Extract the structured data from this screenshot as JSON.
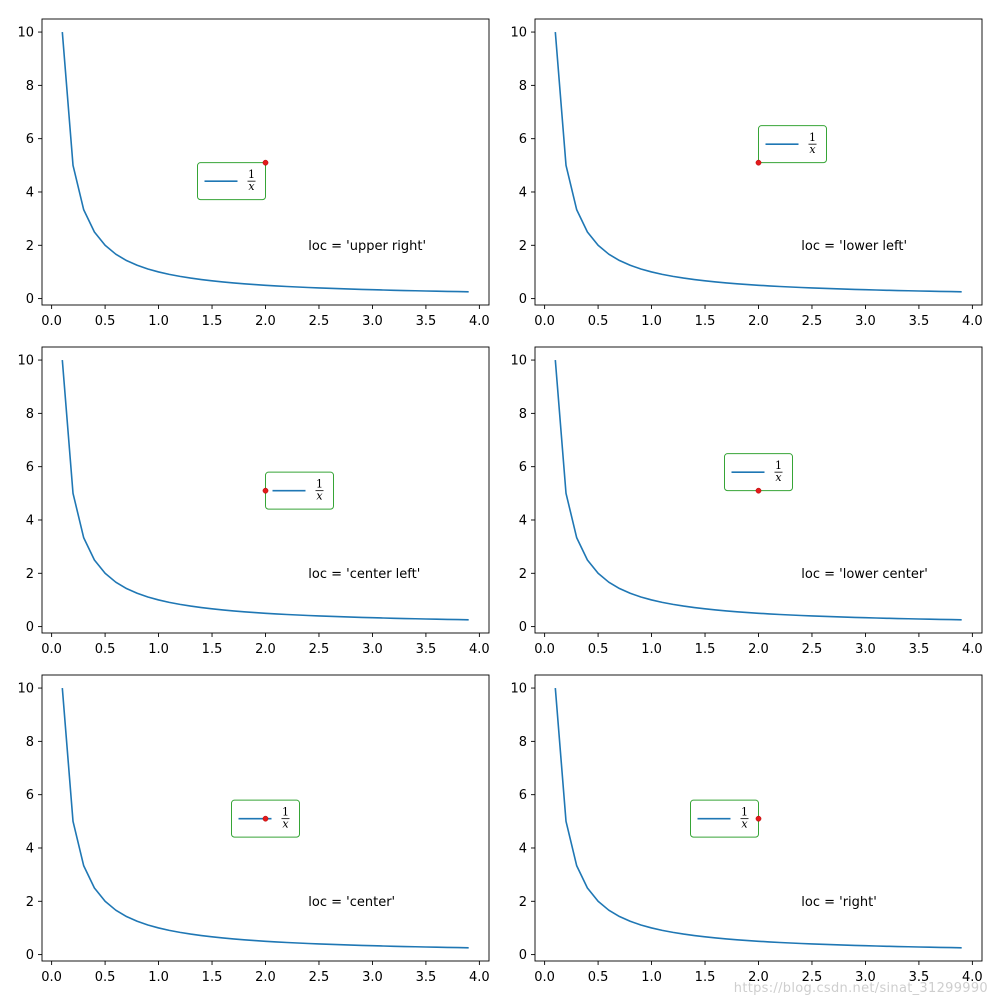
{
  "chart_data": [
    {
      "type": "line",
      "annotation": "loc = 'upper right'",
      "legend_label": "1/x",
      "legend_anchor": "upper right",
      "anchor_point": [
        2.0,
        5.1
      ],
      "x": [
        0.1,
        0.2,
        0.3,
        0.4,
        0.5,
        0.6,
        0.7,
        0.8,
        0.9,
        1.0,
        1.1,
        1.2,
        1.3,
        1.4,
        1.5,
        1.6,
        1.7,
        1.8,
        1.9,
        2.0,
        2.1,
        2.2,
        2.3,
        2.4,
        2.5,
        2.6,
        2.7,
        2.8,
        2.9,
        3.0,
        3.1,
        3.2,
        3.3,
        3.4,
        3.5,
        3.6,
        3.7,
        3.8,
        3.9
      ],
      "xlim": [
        -0.09,
        4.09
      ],
      "ylim": [
        -0.24,
        10.49
      ],
      "xticks": [
        "0.0",
        "0.5",
        "1.0",
        "1.5",
        "2.0",
        "2.5",
        "3.0",
        "3.5",
        "4.0"
      ],
      "yticks": [
        "0",
        "2",
        "4",
        "6",
        "8",
        "10"
      ]
    },
    {
      "type": "line",
      "annotation": "loc = 'lower left'",
      "legend_label": "1/x",
      "legend_anchor": "lower left",
      "anchor_point": [
        2.0,
        5.1
      ],
      "x": [
        0.1,
        0.2,
        0.3,
        0.4,
        0.5,
        0.6,
        0.7,
        0.8,
        0.9,
        1.0,
        1.1,
        1.2,
        1.3,
        1.4,
        1.5,
        1.6,
        1.7,
        1.8,
        1.9,
        2.0,
        2.1,
        2.2,
        2.3,
        2.4,
        2.5,
        2.6,
        2.7,
        2.8,
        2.9,
        3.0,
        3.1,
        3.2,
        3.3,
        3.4,
        3.5,
        3.6,
        3.7,
        3.8,
        3.9
      ],
      "xlim": [
        -0.09,
        4.09
      ],
      "ylim": [
        -0.24,
        10.49
      ],
      "xticks": [
        "0.0",
        "0.5",
        "1.0",
        "1.5",
        "2.0",
        "2.5",
        "3.0",
        "3.5",
        "4.0"
      ],
      "yticks": [
        "0",
        "2",
        "4",
        "6",
        "8",
        "10"
      ]
    },
    {
      "type": "line",
      "annotation": "loc = 'center left'",
      "legend_label": "1/x",
      "legend_anchor": "center left",
      "anchor_point": [
        2.0,
        5.1
      ],
      "x": [
        0.1,
        0.2,
        0.3,
        0.4,
        0.5,
        0.6,
        0.7,
        0.8,
        0.9,
        1.0,
        1.1,
        1.2,
        1.3,
        1.4,
        1.5,
        1.6,
        1.7,
        1.8,
        1.9,
        2.0,
        2.1,
        2.2,
        2.3,
        2.4,
        2.5,
        2.6,
        2.7,
        2.8,
        2.9,
        3.0,
        3.1,
        3.2,
        3.3,
        3.4,
        3.5,
        3.6,
        3.7,
        3.8,
        3.9
      ],
      "xlim": [
        -0.09,
        4.09
      ],
      "ylim": [
        -0.24,
        10.49
      ],
      "xticks": [
        "0.0",
        "0.5",
        "1.0",
        "1.5",
        "2.0",
        "2.5",
        "3.0",
        "3.5",
        "4.0"
      ],
      "yticks": [
        "0",
        "2",
        "4",
        "6",
        "8",
        "10"
      ]
    },
    {
      "type": "line",
      "annotation": "loc = 'lower center'",
      "legend_label": "1/x",
      "legend_anchor": "lower center",
      "anchor_point": [
        2.0,
        5.1
      ],
      "x": [
        0.1,
        0.2,
        0.3,
        0.4,
        0.5,
        0.6,
        0.7,
        0.8,
        0.9,
        1.0,
        1.1,
        1.2,
        1.3,
        1.4,
        1.5,
        1.6,
        1.7,
        1.8,
        1.9,
        2.0,
        2.1,
        2.2,
        2.3,
        2.4,
        2.5,
        2.6,
        2.7,
        2.8,
        2.9,
        3.0,
        3.1,
        3.2,
        3.3,
        3.4,
        3.5,
        3.6,
        3.7,
        3.8,
        3.9
      ],
      "xlim": [
        -0.09,
        4.09
      ],
      "ylim": [
        -0.24,
        10.49
      ],
      "xticks": [
        "0.0",
        "0.5",
        "1.0",
        "1.5",
        "2.0",
        "2.5",
        "3.0",
        "3.5",
        "4.0"
      ],
      "yticks": [
        "0",
        "2",
        "4",
        "6",
        "8",
        "10"
      ]
    },
    {
      "type": "line",
      "annotation": "loc = 'center'",
      "legend_label": "1/x",
      "legend_anchor": "center",
      "anchor_point": [
        2.0,
        5.1
      ],
      "x": [
        0.1,
        0.2,
        0.3,
        0.4,
        0.5,
        0.6,
        0.7,
        0.8,
        0.9,
        1.0,
        1.1,
        1.2,
        1.3,
        1.4,
        1.5,
        1.6,
        1.7,
        1.8,
        1.9,
        2.0,
        2.1,
        2.2,
        2.3,
        2.4,
        2.5,
        2.6,
        2.7,
        2.8,
        2.9,
        3.0,
        3.1,
        3.2,
        3.3,
        3.4,
        3.5,
        3.6,
        3.7,
        3.8,
        3.9
      ],
      "xlim": [
        -0.09,
        4.09
      ],
      "ylim": [
        -0.24,
        10.49
      ],
      "xticks": [
        "0.0",
        "0.5",
        "1.0",
        "1.5",
        "2.0",
        "2.5",
        "3.0",
        "3.5",
        "4.0"
      ],
      "yticks": [
        "0",
        "2",
        "4",
        "6",
        "8",
        "10"
      ]
    },
    {
      "type": "line",
      "annotation": "loc = 'right'",
      "legend_label": "1/x",
      "legend_anchor": "right",
      "anchor_point": [
        2.0,
        5.1
      ],
      "x": [
        0.1,
        0.2,
        0.3,
        0.4,
        0.5,
        0.6,
        0.7,
        0.8,
        0.9,
        1.0,
        1.1,
        1.2,
        1.3,
        1.4,
        1.5,
        1.6,
        1.7,
        1.8,
        1.9,
        2.0,
        2.1,
        2.2,
        2.3,
        2.4,
        2.5,
        2.6,
        2.7,
        2.8,
        2.9,
        3.0,
        3.1,
        3.2,
        3.3,
        3.4,
        3.5,
        3.6,
        3.7,
        3.8,
        3.9
      ],
      "xlim": [
        -0.09,
        4.09
      ],
      "ylim": [
        -0.24,
        10.49
      ],
      "xticks": [
        "0.0",
        "0.5",
        "1.0",
        "1.5",
        "2.0",
        "2.5",
        "3.0",
        "3.5",
        "4.0"
      ],
      "yticks": [
        "0",
        "2",
        "4",
        "6",
        "8",
        "10"
      ]
    }
  ],
  "legend_fraction": {
    "numerator": "1",
    "denominator": "x"
  },
  "annotation_position": [
    2.4,
    2.0
  ],
  "colors": {
    "line": "#1f77b4",
    "legend_frame": "#2ca02c",
    "anchor_marker": "#e41a1c"
  },
  "watermark": "https://blog.csdn.net/sinat_31299990"
}
